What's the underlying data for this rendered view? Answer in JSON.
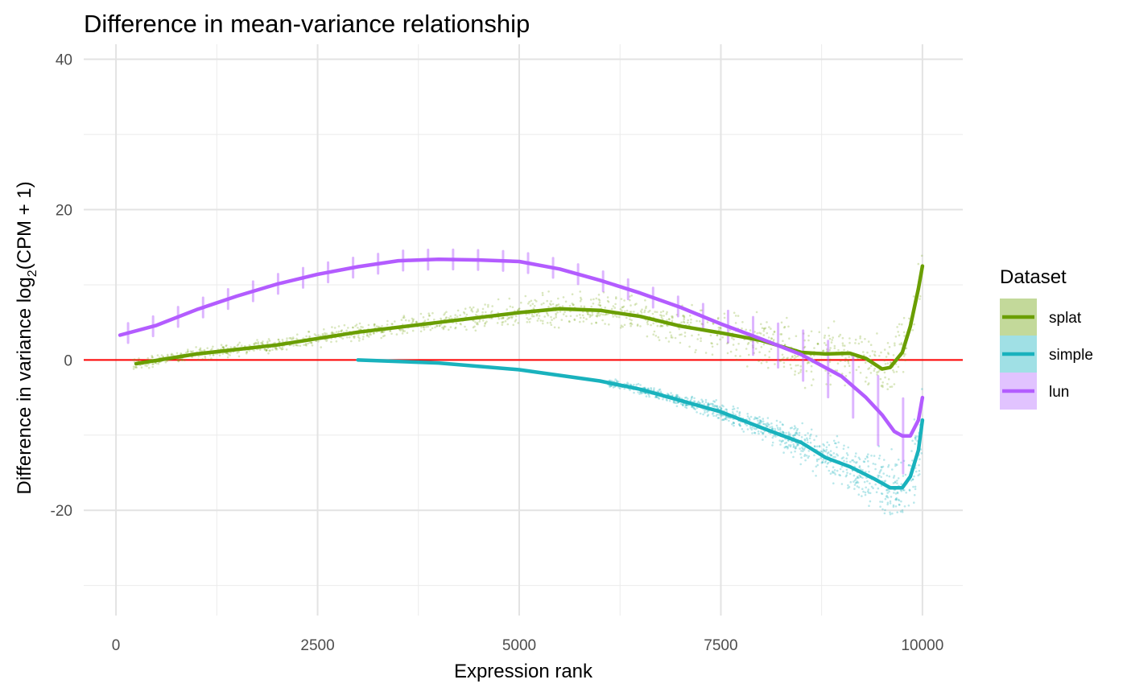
{
  "chart_data": {
    "type": "scatter",
    "title": "Difference in mean-variance relationship",
    "xlabel": "Expression rank",
    "ylabel_main": "Difference in variance log",
    "ylabel_sub": "2",
    "ylabel_tail": "(CPM + 1)",
    "xlim": [
      -400,
      10500
    ],
    "ylim": [
      -34,
      42
    ],
    "x_ticks": [
      0,
      2500,
      5000,
      7500,
      10000
    ],
    "y_ticks": [
      -20,
      0,
      20,
      40
    ],
    "x_minor": [
      1250,
      3750,
      6250,
      8750
    ],
    "y_minor": [
      -30,
      -10,
      10,
      30
    ],
    "grid": true,
    "hline": {
      "y": 0,
      "color": "#ff0000"
    },
    "legend": {
      "title": "Dataset",
      "position": "right",
      "entries": [
        "splat",
        "simple",
        "lun"
      ]
    },
    "series": [
      {
        "name": "splat",
        "color": "#6a9e00",
        "fill": "#c3d99a",
        "smooth": [
          [
            250,
            -0.5
          ],
          [
            1000,
            0.8
          ],
          [
            2000,
            2.0
          ],
          [
            3000,
            3.7
          ],
          [
            4000,
            5.0
          ],
          [
            5000,
            6.3
          ],
          [
            5500,
            6.8
          ],
          [
            6000,
            6.6
          ],
          [
            6500,
            5.8
          ],
          [
            7000,
            4.5
          ],
          [
            7500,
            3.6
          ],
          [
            8000,
            2.6
          ],
          [
            8500,
            1.0
          ],
          [
            8800,
            0.8
          ],
          [
            9100,
            0.9
          ],
          [
            9300,
            0.2
          ],
          [
            9500,
            -1.2
          ],
          [
            9600,
            -1.0
          ],
          [
            9750,
            1.0
          ],
          [
            9850,
            4.5
          ],
          [
            9950,
            9.5
          ],
          [
            10000,
            12.5
          ]
        ],
        "scatter": {
          "x0": 200,
          "x1": 10000,
          "spread_start": 1.2,
          "spread_end": 7.0,
          "count": 1400,
          "opacity": 0.25
        }
      },
      {
        "name": "simple",
        "color": "#19b2bd",
        "fill": "#a0e0e5",
        "smooth": [
          [
            3000,
            0
          ],
          [
            4000,
            -0.4
          ],
          [
            5000,
            -1.3
          ],
          [
            6000,
            -2.8
          ],
          [
            6500,
            -3.9
          ],
          [
            7000,
            -5.4
          ],
          [
            7500,
            -6.9
          ],
          [
            8000,
            -9.0
          ],
          [
            8500,
            -11.0
          ],
          [
            8800,
            -13.0
          ],
          [
            9100,
            -14.2
          ],
          [
            9400,
            -15.8
          ],
          [
            9600,
            -17.0
          ],
          [
            9750,
            -17.0
          ],
          [
            9850,
            -15.5
          ],
          [
            9950,
            -12.0
          ],
          [
            10000,
            -8.0
          ]
        ],
        "scatter": {
          "x0": 6100,
          "x1": 10000,
          "spread_start": 0.8,
          "spread_end": 7.5,
          "count": 1000,
          "opacity": 0.3
        }
      },
      {
        "name": "lun",
        "color": "#b35cff",
        "fill": "#e1c3ff",
        "smooth": [
          [
            50,
            3.3
          ],
          [
            500,
            4.6
          ],
          [
            1000,
            6.7
          ],
          [
            1500,
            8.5
          ],
          [
            2000,
            10.1
          ],
          [
            2500,
            11.4
          ],
          [
            3000,
            12.4
          ],
          [
            3500,
            13.2
          ],
          [
            4000,
            13.4
          ],
          [
            4500,
            13.3
          ],
          [
            5000,
            13.1
          ],
          [
            5500,
            12.1
          ],
          [
            6000,
            10.6
          ],
          [
            6500,
            8.9
          ],
          [
            7000,
            7.0
          ],
          [
            7500,
            4.8
          ],
          [
            8000,
            2.8
          ],
          [
            8500,
            0.7
          ],
          [
            9000,
            -2.2
          ],
          [
            9300,
            -5.0
          ],
          [
            9500,
            -7.3
          ],
          [
            9650,
            -9.5
          ],
          [
            9750,
            -10.1
          ],
          [
            9850,
            -10.1
          ],
          [
            9950,
            -8.0
          ],
          [
            10000,
            -5.0
          ]
        ],
        "stripes": {
          "x0": 150,
          "x1": 9900,
          "step": 310,
          "half_height": 1.3
        }
      }
    ]
  }
}
